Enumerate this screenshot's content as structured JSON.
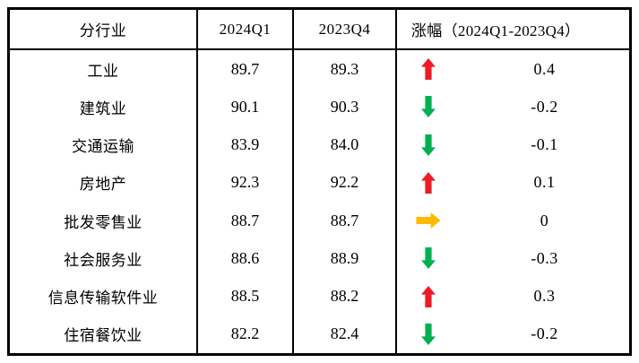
{
  "chart_data": {
    "type": "table",
    "columns": [
      "分行业",
      "2024Q1",
      "2023Q4",
      "涨幅（2024Q1-2023Q4）"
    ],
    "rows": [
      {
        "industry": "工业",
        "q1_2024": "89.7",
        "q4_2023": "89.3",
        "trend": "up",
        "change": "0.4"
      },
      {
        "industry": "建筑业",
        "q1_2024": "90.1",
        "q4_2023": "90.3",
        "trend": "down",
        "change": "-0.2"
      },
      {
        "industry": "交通运输",
        "q1_2024": "83.9",
        "q4_2023": "84.0",
        "trend": "down",
        "change": "-0.1"
      },
      {
        "industry": "房地产",
        "q1_2024": "92.3",
        "q4_2023": "92.2",
        "trend": "up",
        "change": "0.1"
      },
      {
        "industry": "批发零售业",
        "q1_2024": "88.7",
        "q4_2023": "88.7",
        "trend": "flat",
        "change": "0"
      },
      {
        "industry": "社会服务业",
        "q1_2024": "88.6",
        "q4_2023": "88.9",
        "trend": "down",
        "change": "-0.3"
      },
      {
        "industry": "信息传输软件业",
        "q1_2024": "88.5",
        "q4_2023": "88.2",
        "trend": "up",
        "change": "0.3"
      },
      {
        "industry": "住宿餐饮业",
        "q1_2024": "82.2",
        "q4_2023": "82.4",
        "trend": "down",
        "change": "-0.2"
      }
    ],
    "trend_colors": {
      "up": "#ED1C24",
      "down": "#00B050",
      "flat": "#FFB900"
    },
    "trend_icons": {
      "up": "arrow-up-icon",
      "down": "arrow-down-icon",
      "flat": "arrow-right-icon"
    },
    "layout_hints": {
      "grid": "outer border + column separators, no inner row lines",
      "border_color": "#000000"
    }
  }
}
